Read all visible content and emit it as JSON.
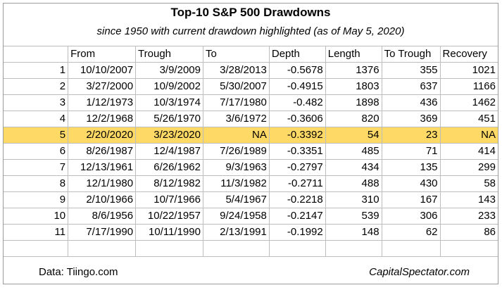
{
  "title": "Top-10 S&P 500 Drawdowns",
  "subtitle": "since 1950 with current drawdown highlighted  (as of May 5, 2020)",
  "columns": [
    "",
    "From",
    "Trough",
    "To",
    "Depth",
    "Length",
    "To Trough",
    "Recovery"
  ],
  "rows": [
    {
      "rank": "1",
      "from": "10/10/2007",
      "trough": "3/9/2009",
      "to": "3/28/2013",
      "depth": "-0.5678",
      "length": "1376",
      "to_trough": "355",
      "recovery": "1021"
    },
    {
      "rank": "2",
      "from": "3/27/2000",
      "trough": "10/9/2002",
      "to": "5/30/2007",
      "depth": "-0.4915",
      "length": "1803",
      "to_trough": "637",
      "recovery": "1166"
    },
    {
      "rank": "3",
      "from": "1/12/1973",
      "trough": "10/3/1974",
      "to": "7/17/1980",
      "depth": "-0.482",
      "length": "1898",
      "to_trough": "436",
      "recovery": "1462"
    },
    {
      "rank": "4",
      "from": "12/2/1968",
      "trough": "5/26/1970",
      "to": "3/6/1972",
      "depth": "-0.3606",
      "length": "820",
      "to_trough": "369",
      "recovery": "451"
    },
    {
      "rank": "5",
      "from": "2/20/2020",
      "trough": "3/23/2020",
      "to": "NA",
      "depth": "-0.3392",
      "length": "54",
      "to_trough": "23",
      "recovery": "NA"
    },
    {
      "rank": "6",
      "from": "8/26/1987",
      "trough": "12/4/1987",
      "to": "7/26/1989",
      "depth": "-0.3351",
      "length": "485",
      "to_trough": "71",
      "recovery": "414"
    },
    {
      "rank": "7",
      "from": "12/13/1961",
      "trough": "6/26/1962",
      "to": "9/3/1963",
      "depth": "-0.2797",
      "length": "434",
      "to_trough": "135",
      "recovery": "299"
    },
    {
      "rank": "8",
      "from": "12/1/1980",
      "trough": "8/12/1982",
      "to": "11/3/1982",
      "depth": "-0.2711",
      "length": "488",
      "to_trough": "430",
      "recovery": "58"
    },
    {
      "rank": "9",
      "from": "2/10/1966",
      "trough": "10/7/1966",
      "to": "5/4/1967",
      "depth": "-0.2218",
      "length": "310",
      "to_trough": "167",
      "recovery": "143"
    },
    {
      "rank": "10",
      "from": "8/6/1956",
      "trough": "10/22/1957",
      "to": "9/24/1958",
      "depth": "-0.2147",
      "length": "539",
      "to_trough": "306",
      "recovery": "233"
    },
    {
      "rank": "11",
      "from": "7/17/1990",
      "trough": "10/11/1990",
      "to": "2/13/1991",
      "depth": "-0.1992",
      "length": "148",
      "to_trough": "62",
      "recovery": "86"
    }
  ],
  "highlight_rank": "5",
  "highlight_color": "#ffd966",
  "footer": {
    "source": "Data: Tiingo.com",
    "brand": "CapitalSpectator.com"
  }
}
